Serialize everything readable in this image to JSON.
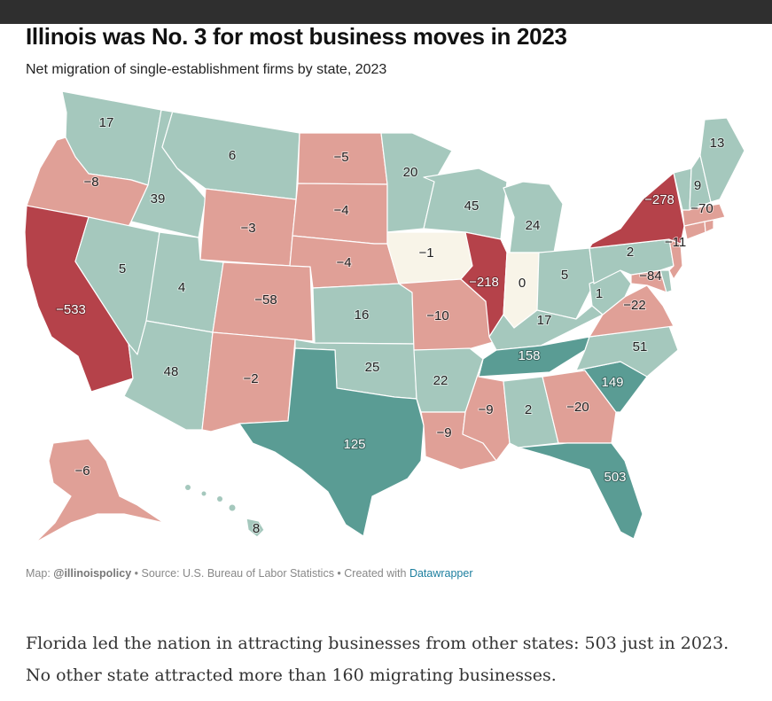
{
  "title": "Illinois was No. 3 for most business moves in 2023",
  "subtitle": "Net migration of single-establishment firms by state, 2023",
  "colors": {
    "strong_negative": "#b5424a",
    "negative": "#e0a097",
    "neutral": "#f8f4e8",
    "positive": "#a5c8bd",
    "strong_positive": "#5a9c94"
  },
  "states": [
    {
      "id": "WA",
      "value": "17",
      "tier": "positive"
    },
    {
      "id": "OR",
      "value": "−8",
      "tier": "negative"
    },
    {
      "id": "CA",
      "value": "−533",
      "tier": "strong_negative"
    },
    {
      "id": "ID",
      "value": "39",
      "tier": "positive"
    },
    {
      "id": "NV",
      "value": "5",
      "tier": "positive"
    },
    {
      "id": "MT",
      "value": "6",
      "tier": "positive"
    },
    {
      "id": "WY",
      "value": "−3",
      "tier": "negative"
    },
    {
      "id": "UT",
      "value": "4",
      "tier": "positive"
    },
    {
      "id": "AZ",
      "value": "48",
      "tier": "positive"
    },
    {
      "id": "CO",
      "value": "−58",
      "tier": "negative"
    },
    {
      "id": "NM",
      "value": "−2",
      "tier": "negative"
    },
    {
      "id": "ND",
      "value": "−5",
      "tier": "negative"
    },
    {
      "id": "SD",
      "value": "−4",
      "tier": "negative"
    },
    {
      "id": "NE",
      "value": "−4",
      "tier": "negative"
    },
    {
      "id": "KS",
      "value": "16",
      "tier": "positive"
    },
    {
      "id": "OK",
      "value": "25",
      "tier": "positive"
    },
    {
      "id": "TX",
      "value": "125",
      "tier": "strong_positive"
    },
    {
      "id": "MN",
      "value": "20",
      "tier": "positive"
    },
    {
      "id": "IA",
      "value": "−1",
      "tier": "neutral"
    },
    {
      "id": "MO",
      "value": "−10",
      "tier": "negative"
    },
    {
      "id": "AR",
      "value": "22",
      "tier": "positive"
    },
    {
      "id": "LA",
      "value": "−9",
      "tier": "negative"
    },
    {
      "id": "WI",
      "value": "45",
      "tier": "positive"
    },
    {
      "id": "IL",
      "value": "−218",
      "tier": "strong_negative"
    },
    {
      "id": "MI",
      "value": "24",
      "tier": "positive"
    },
    {
      "id": "IN",
      "value": "0",
      "tier": "neutral"
    },
    {
      "id": "OH",
      "value": "5",
      "tier": "positive"
    },
    {
      "id": "KY",
      "value": "17",
      "tier": "positive"
    },
    {
      "id": "TN",
      "value": "158",
      "tier": "strong_positive"
    },
    {
      "id": "MS",
      "value": "−9",
      "tier": "negative"
    },
    {
      "id": "AL",
      "value": "2",
      "tier": "positive"
    },
    {
      "id": "GA",
      "value": "−20",
      "tier": "negative"
    },
    {
      "id": "FL",
      "value": "503",
      "tier": "strong_positive"
    },
    {
      "id": "SC",
      "value": "149",
      "tier": "strong_positive"
    },
    {
      "id": "NC",
      "value": "51",
      "tier": "positive"
    },
    {
      "id": "VA",
      "value": "−22",
      "tier": "negative"
    },
    {
      "id": "WV",
      "value": "1",
      "tier": "positive"
    },
    {
      "id": "MD",
      "value": "−84",
      "tier": "negative"
    },
    {
      "id": "DE",
      "value": "",
      "tier": "positive"
    },
    {
      "id": "PA",
      "value": "2",
      "tier": "positive"
    },
    {
      "id": "NJ",
      "value": "−11",
      "tier": "negative"
    },
    {
      "id": "NY",
      "value": "−278",
      "tier": "strong_negative"
    },
    {
      "id": "CT",
      "value": "",
      "tier": "negative"
    },
    {
      "id": "RI",
      "value": "",
      "tier": "negative"
    },
    {
      "id": "MA",
      "value": "−70",
      "tier": "negative"
    },
    {
      "id": "VT",
      "value": "",
      "tier": "positive"
    },
    {
      "id": "NH",
      "value": "9",
      "tier": "positive"
    },
    {
      "id": "ME",
      "value": "13",
      "tier": "positive"
    },
    {
      "id": "AK",
      "value": "−6",
      "tier": "negative"
    },
    {
      "id": "HI",
      "value": "8",
      "tier": "positive"
    }
  ],
  "credit": {
    "prefix": "Map: ",
    "handle": "@illinoispolicy",
    "source": " • Source: U.S. Bureau of Labor Statistics • Created with ",
    "link": "Datawrapper"
  },
  "body_text": "Florida led the nation in attracting businesses from other states: 503 just in 2023. No other state attracted more than 160 migrating businesses."
}
